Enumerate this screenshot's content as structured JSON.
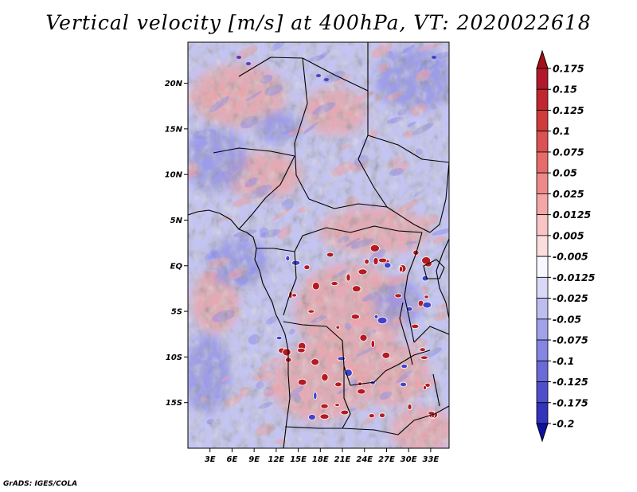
{
  "chart_data": {
    "type": "heatmap",
    "title": "Vertical velocity [m/s] at 400hPa, VT: 2020022618",
    "variable": "Vertical velocity",
    "units": "m/s",
    "level": "400hPa",
    "valid_time": "2020022618",
    "x_axis": {
      "range_deg_east": [
        0,
        35.5
      ],
      "ticks": [
        {
          "value": 3,
          "label": "3E"
        },
        {
          "value": 6,
          "label": "6E"
        },
        {
          "value": 9,
          "label": "9E"
        },
        {
          "value": 12,
          "label": "12E"
        },
        {
          "value": 15,
          "label": "15E"
        },
        {
          "value": 18,
          "label": "18E"
        },
        {
          "value": 21,
          "label": "21E"
        },
        {
          "value": 24,
          "label": "24E"
        },
        {
          "value": 27,
          "label": "27E"
        },
        {
          "value": 30,
          "label": "30E"
        },
        {
          "value": 33,
          "label": "33E"
        }
      ]
    },
    "y_axis": {
      "range_deg_north": [
        -20,
        24.5
      ],
      "ticks": [
        {
          "value": 20,
          "label": "20N"
        },
        {
          "value": 15,
          "label": "15N"
        },
        {
          "value": 10,
          "label": "10N"
        },
        {
          "value": 5,
          "label": "5N"
        },
        {
          "value": 0,
          "label": "EQ"
        },
        {
          "value": -5,
          "label": "5S"
        },
        {
          "value": -10,
          "label": "10S"
        },
        {
          "value": -15,
          "label": "15S"
        }
      ]
    },
    "colorbar": {
      "levels": [
        {
          "label": "0.175",
          "color": "#b2182b"
        },
        {
          "label": "0.15",
          "color": "#c0262f"
        },
        {
          "label": "0.125",
          "color": "#cf3a3a"
        },
        {
          "label": "0.1",
          "color": "#dc5252"
        },
        {
          "label": "0.075",
          "color": "#e66b6b"
        },
        {
          "label": "0.05",
          "color": "#ee8989"
        },
        {
          "label": "0.025",
          "color": "#f4a6a6"
        },
        {
          "label": "0.0125",
          "color": "#f8c4c4"
        },
        {
          "label": "0.005",
          "color": "#fbdddd"
        },
        {
          "label": "-0.005",
          "color": "#f7f7ff"
        },
        {
          "label": "-0.0125",
          "color": "#d9d9f7"
        },
        {
          "label": "-0.025",
          "color": "#bdbdf0"
        },
        {
          "label": "-0.05",
          "color": "#a1a1ea"
        },
        {
          "label": "-0.075",
          "color": "#8585e3"
        },
        {
          "label": "-0.1",
          "color": "#6a6ad9"
        },
        {
          "label": "-0.125",
          "color": "#4f4fcc"
        },
        {
          "label": "-0.175",
          "color": "#3333bd"
        },
        {
          "label": "-0.2",
          "color": "#1f1fa8"
        }
      ],
      "extreme_colors": {
        "top": "#a50f15",
        "bottom": "#1010a0"
      }
    }
  },
  "footer": "GrADS: IGES/COLA",
  "colors": {
    "field_base": "#c4c4f3",
    "positive": "#f0a0a0",
    "negative": "#8f8fe6",
    "strong_positive": "#b41b23",
    "strong_negative": "#4343c8",
    "boundaries": "#000000"
  }
}
